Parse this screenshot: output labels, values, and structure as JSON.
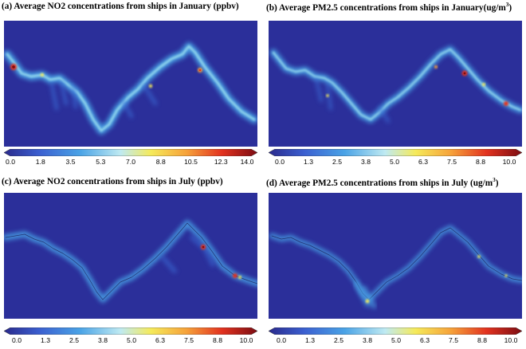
{
  "colors": {
    "background": "#2b2f9a",
    "colorbar": [
      "#2a2a8c",
      "#3b5fd0",
      "#4aa3e6",
      "#9fe0f0",
      "#f5ea5a",
      "#f6a23a",
      "#e2321f",
      "#7b0c12"
    ]
  },
  "panels": [
    {
      "id": "a",
      "title": "(a) Average NO2 concentrations from ships in January (ppbv)",
      "ticks": [
        "0.0",
        "1.8",
        "3.5",
        "5.3",
        "7.0",
        "8.8",
        "10.5",
        "12.3",
        "14.0"
      ]
    },
    {
      "id": "b",
      "title_text": "(b) Average PM2.5 concentrations from ships in January(ug/m",
      "title_sup": "3",
      "title_end": ")",
      "ticks": [
        "0.0",
        "1.3",
        "2.5",
        "3.8",
        "5.0",
        "6.3",
        "7.5",
        "8.8",
        "10.0"
      ]
    },
    {
      "id": "c",
      "title": "(c) Average NO2 concentrations from ships in July (ppbv)",
      "ticks": [
        "0.0",
        "1.3",
        "2.5",
        "3.8",
        "5.0",
        "6.3",
        "7.5",
        "8.8",
        "10.0"
      ]
    },
    {
      "id": "d",
      "title_text": "(d) Average PM2.5 concentrations from ships in July (ug/m",
      "title_sup": "3",
      "title_end": ")",
      "ticks": [
        "0.0",
        "1.3",
        "2.5",
        "3.8",
        "5.0",
        "6.3",
        "7.5",
        "8.8",
        "10.0"
      ]
    }
  ]
}
